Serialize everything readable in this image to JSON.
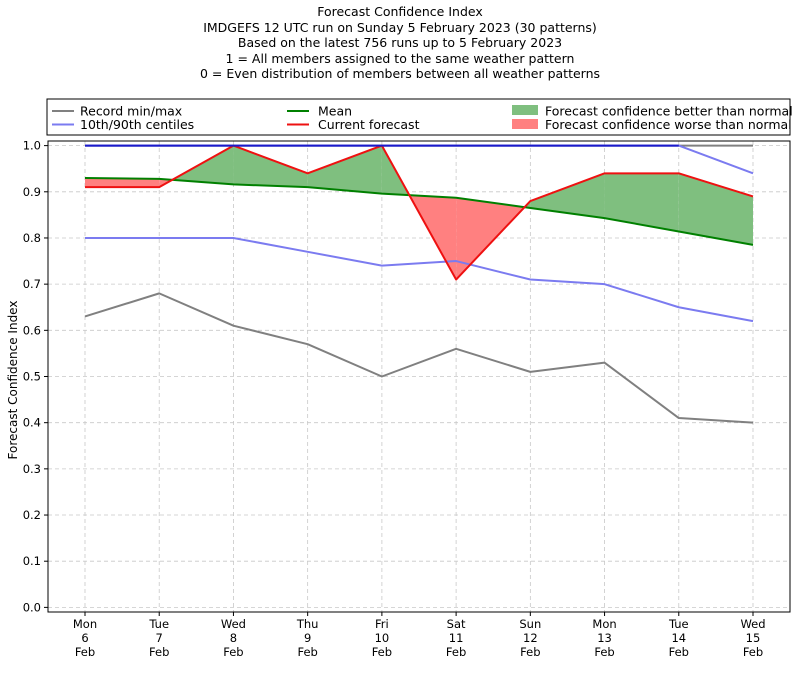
{
  "titles": [
    "Forecast Confidence Index",
    "IMDGEFS 12 UTC run on Sunday 5 February 2023 (30 patterns)",
    "Based on the latest 756 runs up to 5 February 2023",
    "1 = All members assigned to the same weather pattern",
    "0 = Even distribution of members between all weather patterns"
  ],
  "chart_data": {
    "type": "line",
    "ylabel": "Forecast Confidence Index",
    "xlabel": "",
    "ylim": [
      -0.01,
      1.01
    ],
    "yticks": [
      "0.0",
      "0.1",
      "0.2",
      "0.3",
      "0.4",
      "0.5",
      "0.6",
      "0.7",
      "0.8",
      "0.9",
      "1.0"
    ],
    "grid": true,
    "legend_position": "top, above plot",
    "categories": [
      [
        "Mon",
        "6",
        "Feb"
      ],
      [
        "Tue",
        "7",
        "Feb"
      ],
      [
        "Wed",
        "8",
        "Feb"
      ],
      [
        "Thu",
        "9",
        "Feb"
      ],
      [
        "Fri",
        "10",
        "Feb"
      ],
      [
        "Sat",
        "11",
        "Feb"
      ],
      [
        "Sun",
        "12",
        "Feb"
      ],
      [
        "Mon",
        "13",
        "Feb"
      ],
      [
        "Tue",
        "14",
        "Feb"
      ],
      [
        "Wed",
        "15",
        "Feb"
      ]
    ],
    "series": [
      {
        "name": "Record min/max",
        "role": "record_max",
        "color": "#808080",
        "values": [
          1.0,
          1.0,
          1.0,
          1.0,
          1.0,
          1.0,
          1.0,
          1.0,
          1.0,
          1.0
        ]
      },
      {
        "name": "Record min/max",
        "role": "record_min",
        "color": "#808080",
        "values": [
          0.63,
          0.68,
          0.61,
          0.57,
          0.5,
          0.56,
          0.51,
          0.53,
          0.41,
          0.4
        ]
      },
      {
        "name": "10th/90th centiles",
        "role": "p90",
        "color": "#7b7bf0",
        "values": [
          1.0,
          1.0,
          1.0,
          1.0,
          1.0,
          1.0,
          1.0,
          1.0,
          1.0,
          0.94
        ]
      },
      {
        "name": "10th/90th centiles",
        "role": "p10",
        "color": "#7b7bf0",
        "values": [
          0.8,
          0.8,
          0.8,
          0.77,
          0.74,
          0.75,
          0.71,
          0.7,
          0.65,
          0.62
        ]
      },
      {
        "name": "Mean",
        "role": "mean",
        "color": "#008000",
        "values": [
          0.93,
          0.928,
          0.916,
          0.91,
          0.896,
          0.887,
          0.865,
          0.843,
          0.814,
          0.785
        ]
      },
      {
        "name": "Current forecast",
        "role": "current",
        "color": "#ee1111",
        "values": [
          0.91,
          0.91,
          1.0,
          0.94,
          1.0,
          0.71,
          0.88,
          0.94,
          0.94,
          0.89
        ]
      }
    ],
    "fills": [
      {
        "name": "Forecast confidence better than normal",
        "color": "#7fbf7f"
      },
      {
        "name": "Forecast confidence worse than normal",
        "color": "#ff8080"
      }
    ]
  },
  "colors": {
    "max_line": "#1a1acc",
    "grid": "#c8c8c8"
  }
}
